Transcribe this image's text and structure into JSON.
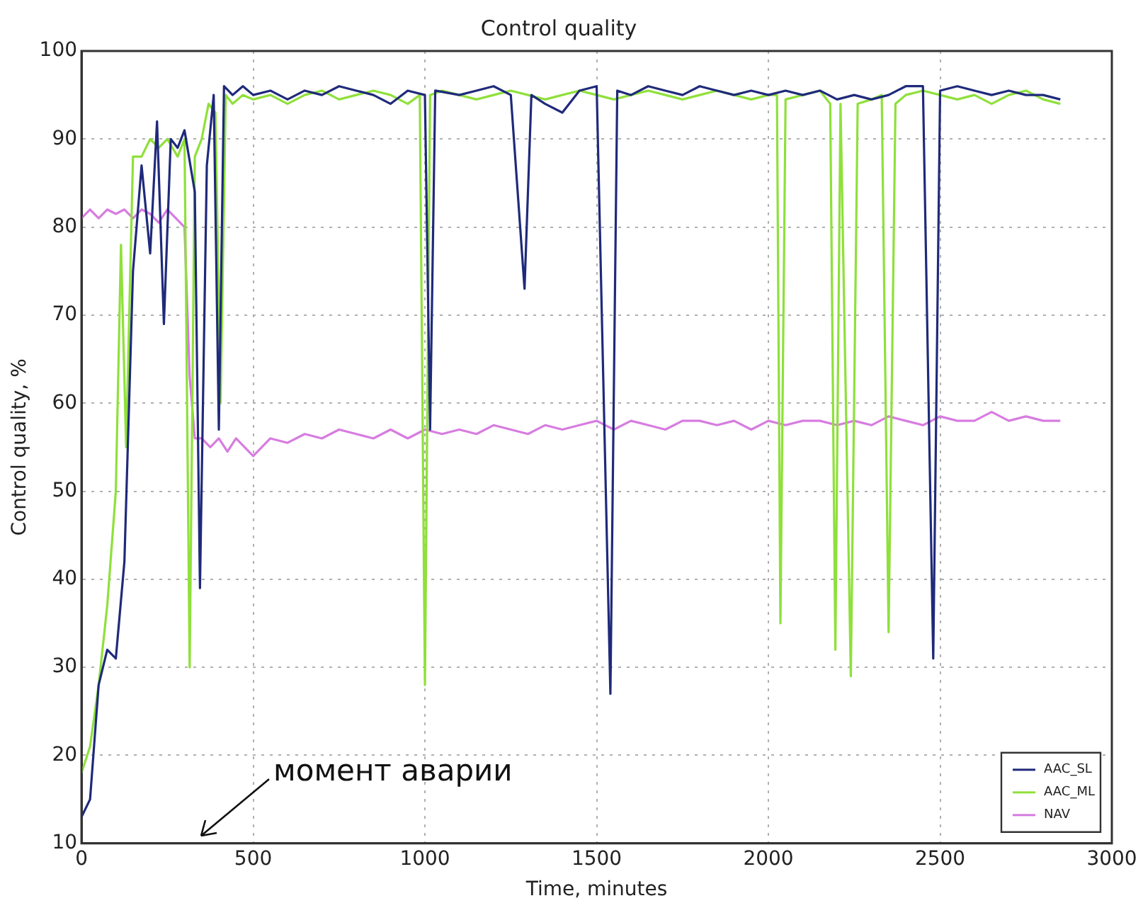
{
  "chart_data": {
    "type": "line",
    "title": "Control quality",
    "xlabel": "Time, minutes",
    "ylabel": "Control quality, %",
    "xlim": [
      0,
      3000
    ],
    "xticks": [
      0,
      500,
      1000,
      1500,
      2000,
      2500,
      3000
    ],
    "ylim": [
      10,
      100
    ],
    "yticks": [
      10,
      20,
      30,
      40,
      50,
      60,
      70,
      80,
      90,
      100
    ],
    "grid": true,
    "legend": "bottom right",
    "marker": "none",
    "line_style": "solid",
    "annotations": [
      "момент аварии"
    ],
    "series": [
      {
        "name": "AAC_SL",
        "color": "#1f2a7a",
        "x": [
          0,
          25,
          50,
          75,
          100,
          125,
          150,
          175,
          200,
          220,
          240,
          260,
          280,
          300,
          330,
          345,
          365,
          385,
          400,
          415,
          440,
          470,
          500,
          550,
          600,
          650,
          700,
          750,
          800,
          850,
          900,
          950,
          1000,
          1015,
          1030,
          1100,
          1150,
          1200,
          1250,
          1290,
          1310,
          1350,
          1400,
          1450,
          1500,
          1540,
          1560,
          1600,
          1650,
          1700,
          1750,
          1800,
          1850,
          1900,
          1950,
          2000,
          2050,
          2100,
          2150,
          2200,
          2250,
          2300,
          2350,
          2400,
          2450,
          2480,
          2500,
          2550,
          2600,
          2650,
          2700,
          2750,
          2800,
          2850
        ],
        "values": [
          13,
          15,
          28,
          32,
          31,
          42,
          75,
          87,
          77,
          92,
          69,
          90,
          89,
          91,
          84,
          39,
          87,
          95,
          57,
          96,
          95,
          96,
          95,
          95.5,
          94.5,
          95.5,
          95,
          96,
          95.5,
          95,
          94,
          95.5,
          95,
          57,
          95.5,
          95,
          95.5,
          96,
          95,
          73,
          95,
          94,
          93,
          95.5,
          96,
          27,
          95.5,
          95,
          96,
          95.5,
          95,
          96,
          95.5,
          95,
          95.5,
          95,
          95.5,
          95,
          95.5,
          94.5,
          95,
          94.5,
          95,
          96,
          96,
          31,
          95.5,
          96,
          95.5,
          95,
          95.5,
          95,
          95,
          94.5
        ]
      },
      {
        "name": "AAC_ML",
        "color": "#8fe03a",
        "x": [
          0,
          25,
          50,
          75,
          100,
          115,
          130,
          150,
          175,
          200,
          225,
          250,
          280,
          300,
          315,
          330,
          350,
          370,
          390,
          405,
          420,
          440,
          470,
          500,
          550,
          600,
          650,
          700,
          750,
          800,
          850,
          900,
          950,
          985,
          1000,
          1015,
          1050,
          1100,
          1150,
          1200,
          1250,
          1300,
          1350,
          1400,
          1450,
          1500,
          1550,
          1600,
          1650,
          1700,
          1750,
          1800,
          1850,
          1900,
          1950,
          2000,
          2025,
          2035,
          2050,
          2100,
          2150,
          2180,
          2195,
          2210,
          2240,
          2260,
          2300,
          2330,
          2350,
          2370,
          2400,
          2450,
          2500,
          2550,
          2600,
          2650,
          2700,
          2750,
          2800,
          2850
        ],
        "values": [
          18,
          21,
          28,
          37,
          50,
          78,
          55,
          88,
          88,
          90,
          89,
          90,
          88,
          90,
          30,
          88,
          90,
          94,
          93,
          60,
          95,
          94,
          95,
          94.5,
          95,
          94,
          95,
          95.5,
          94.5,
          95,
          95.5,
          95,
          94,
          95,
          28,
          95,
          95.5,
          95,
          94.5,
          95,
          95.5,
          95,
          94.5,
          95,
          95.5,
          95,
          94.5,
          95,
          95.5,
          95,
          94.5,
          95,
          95.5,
          95,
          94.5,
          95,
          95,
          35,
          94.5,
          95,
          95.5,
          94,
          32,
          94,
          29,
          94,
          94.5,
          95,
          34,
          94,
          95,
          95.5,
          95,
          94.5,
          95,
          94,
          95,
          95.5,
          94.5,
          94
        ]
      },
      {
        "name": "NAV",
        "color": "#d77ce0",
        "x": [
          0,
          25,
          50,
          75,
          100,
          125,
          150,
          175,
          200,
          225,
          250,
          275,
          300,
          315,
          330,
          350,
          375,
          400,
          425,
          450,
          475,
          500,
          550,
          600,
          650,
          700,
          750,
          800,
          850,
          900,
          950,
          1000,
          1050,
          1100,
          1150,
          1200,
          1250,
          1300,
          1350,
          1400,
          1450,
          1500,
          1550,
          1600,
          1650,
          1700,
          1750,
          1800,
          1850,
          1900,
          1950,
          2000,
          2050,
          2100,
          2150,
          2200,
          2250,
          2300,
          2350,
          2400,
          2450,
          2500,
          2550,
          2600,
          2650,
          2700,
          2750,
          2800,
          2850
        ],
        "values": [
          81,
          82,
          81,
          82,
          81.5,
          82,
          81,
          82,
          81.5,
          80.5,
          82,
          81,
          80,
          63,
          56,
          56,
          55,
          56,
          54.5,
          56,
          55,
          54,
          56,
          55.5,
          56.5,
          56,
          57,
          56.5,
          56,
          57,
          56,
          57,
          56.5,
          57,
          56.5,
          57.5,
          57,
          56.5,
          57.5,
          57,
          57.5,
          58,
          57,
          58,
          57.5,
          57,
          58,
          58,
          57.5,
          58,
          57,
          58,
          57.5,
          58,
          58,
          57.5,
          58,
          57.5,
          58.5,
          58,
          57.5,
          58.5,
          58,
          58,
          59,
          58,
          58.5,
          58,
          58
        ]
      }
    ]
  }
}
